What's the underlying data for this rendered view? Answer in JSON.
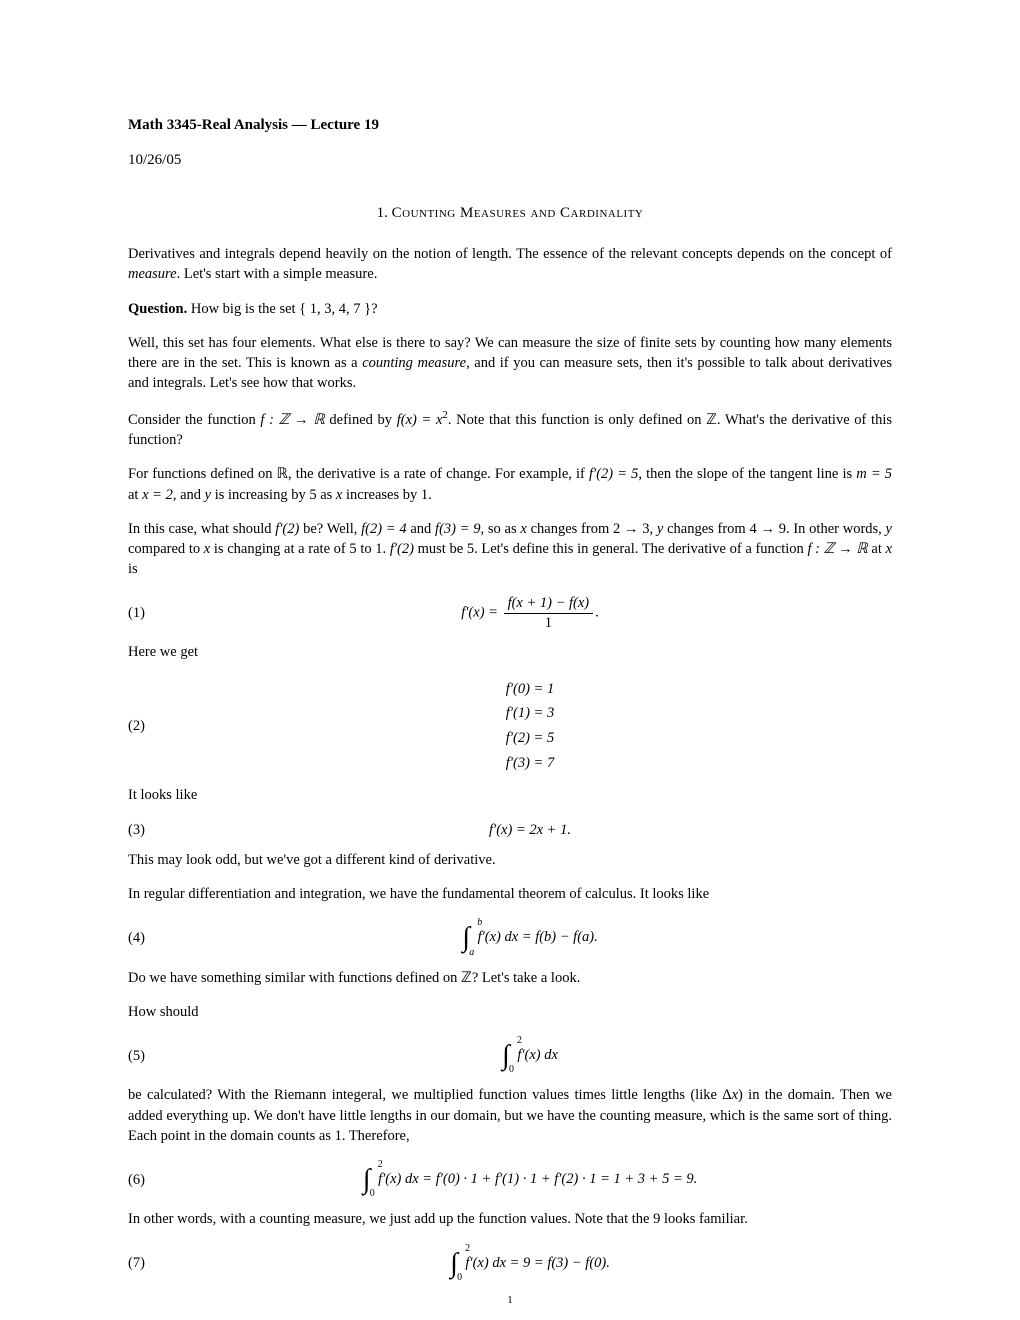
{
  "title": "Math 3345-Real Analysis — Lecture 19",
  "date": "10/26/05",
  "section": {
    "number": "1.",
    "title": "Counting Measures and Cardinality"
  },
  "para1": "Derivatives and integrals depend heavily on the notion of length. The essence of the relevant concepts depends on the concept of ",
  "para1_italic": "measure",
  "para1_end": ". Let's start with a simple measure.",
  "question_label": "Question.",
  "question_text": " How big is the set { 1, 3, 4, 7 }?",
  "para2a": "Well, this set has four elements. What else is there to say? We can measure the size of finite sets by counting how many elements there are in the set. This is known as a ",
  "para2_italic": "counting measure",
  "para2b": ", and if you can measure sets, then it's possible to talk about derivatives and integrals. Let's see how that works.",
  "para3a": "Consider the function ",
  "para3_f": "f : ℤ → ℝ",
  "para3b": " defined by ",
  "para3_eq": "f(x) = x",
  "para3_sup": "2",
  "para3c": ". Note that this function is only defined on ℤ. What's the derivative of this function?",
  "para4a": "For functions defined on ℝ, the derivative is a rate of change. For example, if ",
  "para4_eq1": "f′(2) = 5",
  "para4b": ", then the slope of the tangent line is ",
  "para4_eq2": "m = 5",
  "para4c": " at ",
  "para4_eq3": "x = 2",
  "para4d": ", and ",
  "para4_y1": "y",
  "para4e": " is increasing by 5 as ",
  "para4_x": "x",
  "para4f": " increases by 1.",
  "para5a": "In this case, what should ",
  "para5_eq1": "f′(2)",
  "para5b": " be? Well, ",
  "para5_eq2": "f(2) = 4",
  "para5c": " and ",
  "para5_eq3": "f(3) = 9",
  "para5d": ", so as ",
  "para5_x": "x",
  "para5e": " changes from 2 → 3, ",
  "para5_y1": "y",
  "para5f": " changes from 4 → 9. In other words, ",
  "para5_y2": "y",
  "para5g": " compared to ",
  "para5_x2": "x",
  "para5h": " is changing at a rate of 5 to 1. ",
  "para5_eq4": "f′(2)",
  "para5i": " must be 5. Let's define this in general. The derivative of a function ",
  "para5_f": "f : ℤ → ℝ",
  "para5j": " at ",
  "para5_x3": "x",
  "para5k": " is",
  "eq1_num": "(1)",
  "eq1_lhs": "f′(x) = ",
  "eq1_frac_num": "f(x + 1) − f(x)",
  "eq1_frac_den": "1",
  "eq1_end": ".",
  "para6": "Here we get",
  "eq2_num": "(2)",
  "eq2_l1": "f′(0) = 1",
  "eq2_l2": "f′(1) = 3",
  "eq2_l3": "f′(2) = 5",
  "eq2_l4": "f′(3) = 7",
  "para7": "It looks like",
  "eq3_num": "(3)",
  "eq3": "f′(x) = 2x + 1.",
  "para8": "This may look odd, but we've got a different kind of derivative.",
  "para9": "In regular differentiation and integration, we have the fundamental theorem of calculus. It looks like",
  "eq4_num": "(4)",
  "eq4_upper": "b",
  "eq4_lower": "a",
  "eq4_body": " f′(x) dx = f(b) − f(a).",
  "para10": "Do we have something similar with functions defined on ℤ? Let's take a look.",
  "para11": "How should",
  "eq5_num": "(5)",
  "eq5_upper": "2",
  "eq5_lower": "0",
  "eq5_body": " f′(x) dx",
  "para12a": "be calculated? With the Riemann integeral, we multiplied function values times little lengths (like Δ",
  "para12_x": "x",
  "para12b": ") in the domain. Then we added everything up. We don't have little lengths in our domain, but we have the counting measure, which is the same sort of thing. Each point in the domain counts as 1. Therefore,",
  "eq6_num": "(6)",
  "eq6_upper": "2",
  "eq6_lower": "0",
  "eq6_body": " f′(x) dx = f′(0) · 1 + f′(1) · 1 + f′(2) · 1 = 1 + 3 + 5 = 9.",
  "para13": "In other words, with a counting measure, we just add up the function values. Note that the 9 looks familiar.",
  "eq7_num": "(7)",
  "eq7_upper": "2",
  "eq7_lower": "0",
  "eq7_body": " f′(x) dx = 9 = f(3) − f(0).",
  "page_number": "1",
  "colors": {
    "text": "#000000",
    "background": "#ffffff"
  },
  "fonts": {
    "body_size": 14.5,
    "title_size": 15,
    "equation_size": 14.5
  }
}
